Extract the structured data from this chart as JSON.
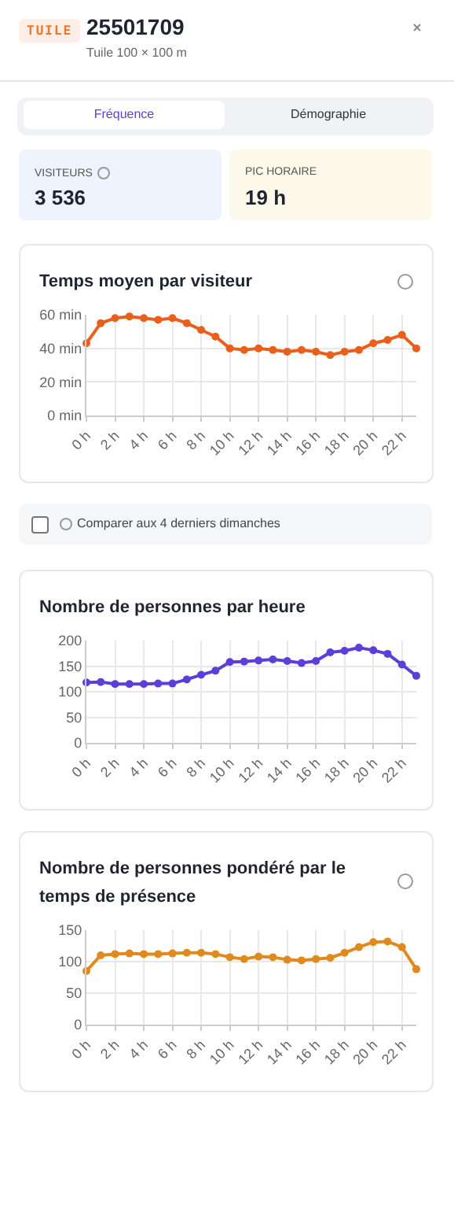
{
  "chart_data": [
    {
      "type": "other",
      "title": "25501709",
      "subtitle": "Tuile 100 × 100 m",
      "annotations": [
        "TUILE",
        "Fréquence",
        "Démographie",
        "VISITEURS",
        "3 536",
        "PIC HORAIRE",
        "19 h"
      ]
    },
    {
      "type": "line",
      "title": "Temps moyen par visiteur",
      "categories": [
        "0 h",
        null,
        "2 h",
        null,
        "4 h",
        null,
        "6 h",
        null,
        "8 h",
        null,
        "10 h",
        null,
        "12 h",
        null,
        "14 h",
        null,
        "16 h",
        null,
        "18 h",
        null,
        "20 h",
        null,
        "22 h",
        null
      ],
      "values": [
        43,
        55,
        58,
        59,
        58,
        57,
        58,
        55,
        51,
        47,
        40,
        39,
        40,
        39,
        38,
        39,
        38,
        36,
        38,
        39,
        43,
        45,
        48,
        40
      ],
      "color": "#e8601c",
      "ylim": [
        0,
        60
      ],
      "yticks": [
        {
          "value": 0,
          "label": "0 min"
        },
        {
          "value": 20,
          "label": "20 min"
        },
        {
          "value": 40,
          "label": "40 min"
        },
        {
          "value": 60,
          "label": "60 min"
        }
      ],
      "grid": true,
      "marker": "circle"
    },
    {
      "type": "other",
      "annotations": [
        "Comparer aux 4 derniers dimanches"
      ]
    },
    {
      "type": "line",
      "title": "Nombre de personnes par heure",
      "categories": [
        "0 h",
        null,
        "2 h",
        null,
        "4 h",
        null,
        "6 h",
        null,
        "8 h",
        null,
        "10 h",
        null,
        "12 h",
        null,
        "14 h",
        null,
        "16 h",
        null,
        "18 h",
        null,
        "20 h",
        null,
        "22 h",
        null
      ],
      "values": [
        118,
        119,
        115,
        115,
        115,
        116,
        116,
        124,
        133,
        141,
        158,
        159,
        161,
        163,
        160,
        156,
        160,
        177,
        180,
        186,
        181,
        174,
        153,
        131
      ],
      "color": "#5b3fd6",
      "ylim": [
        0,
        200
      ],
      "yticks": [
        0,
        50,
        100,
        150,
        200
      ],
      "grid": true,
      "marker": "circle"
    },
    {
      "type": "line",
      "title": "Nombre de personnes pondéré par le temps de présence",
      "categories": [
        "0 h",
        null,
        "2 h",
        null,
        "4 h",
        null,
        "6 h",
        null,
        "8 h",
        null,
        "10 h",
        null,
        "12 h",
        null,
        "14 h",
        null,
        "16 h",
        null,
        "18 h",
        null,
        "20 h",
        null,
        "22 h",
        null
      ],
      "values": [
        85,
        110,
        112,
        113,
        112,
        112,
        113,
        114,
        114,
        112,
        107,
        104,
        108,
        107,
        103,
        102,
        104,
        106,
        114,
        123,
        131,
        132,
        123,
        88
      ],
      "color": "#e08a1e",
      "ylim": [
        0,
        150
      ],
      "yticks": [
        0,
        50,
        100,
        150
      ],
      "grid": true,
      "marker": "circle"
    }
  ]
}
